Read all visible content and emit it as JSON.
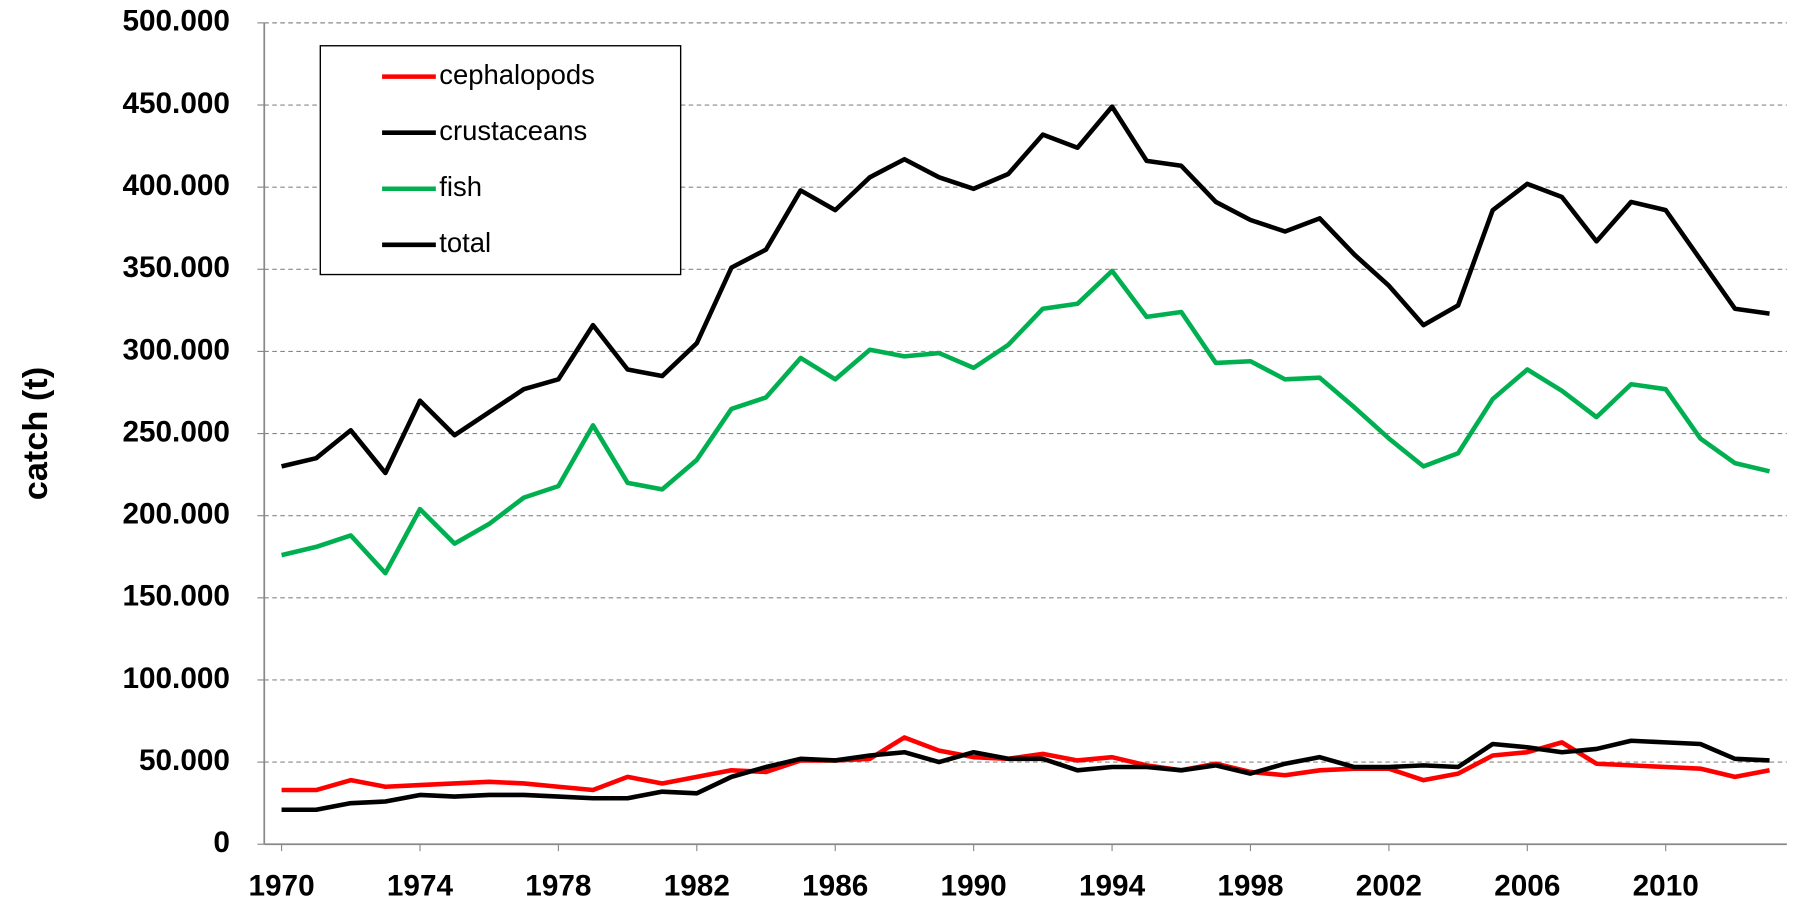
{
  "chart_data": {
    "type": "line",
    "y_label": "catch (t)",
    "x": [
      1970,
      1971,
      1972,
      1973,
      1974,
      1975,
      1976,
      1977,
      1978,
      1979,
      1980,
      1981,
      1982,
      1983,
      1984,
      1985,
      1986,
      1987,
      1988,
      1989,
      1990,
      1991,
      1992,
      1993,
      1994,
      1995,
      1996,
      1997,
      1998,
      1999,
      2000,
      2001,
      2002,
      2003,
      2004,
      2005,
      2006,
      2007,
      2008,
      2009,
      2010,
      2011,
      2012,
      2013
    ],
    "xlim": [
      1969.5,
      2013.5
    ],
    "xticks": [
      1970,
      1974,
      1978,
      1982,
      1986,
      1990,
      1994,
      1998,
      2002,
      2006,
      2010
    ],
    "ylim": [
      0,
      500000
    ],
    "yticks": [
      0,
      {
        "value": 50000,
        "label": "50.000"
      },
      {
        "value": 100000,
        "label": "100.000"
      },
      {
        "value": 150000,
        "label": "150.000"
      },
      {
        "value": 200000,
        "label": "200.000"
      },
      {
        "value": 250000,
        "label": "250.000"
      },
      {
        "value": 300000,
        "label": "300.000"
      },
      {
        "value": 350000,
        "label": "350.000"
      },
      {
        "value": 400000,
        "label": "400.000"
      },
      {
        "value": 450000,
        "label": "450.000"
      },
      {
        "value": 500000,
        "label": "500.000"
      }
    ],
    "grid": true,
    "legend": "upper-left",
    "series": [
      {
        "name": "cephalopods",
        "color": "#ff0000",
        "values": [
          33000,
          33000,
          39000,
          35000,
          36000,
          37000,
          38000,
          37000,
          35000,
          33000,
          41000,
          37000,
          41000,
          45000,
          44000,
          51000,
          51000,
          52000,
          65000,
          57000,
          53000,
          52000,
          55000,
          51000,
          53000,
          48000,
          45000,
          49000,
          44000,
          42000,
          45000,
          46000,
          46000,
          39000,
          43000,
          54000,
          56000,
          62000,
          49000,
          48000,
          47000,
          46000,
          41000,
          45000
        ]
      },
      {
        "name": "crustaceans",
        "color": "#000000",
        "values": [
          21000,
          21000,
          25000,
          26000,
          30000,
          29000,
          30000,
          30000,
          29000,
          28000,
          28000,
          32000,
          31000,
          41000,
          47000,
          52000,
          51000,
          54000,
          56000,
          50000,
          56000,
          52000,
          52000,
          45000,
          47000,
          47000,
          45000,
          48000,
          43000,
          49000,
          53000,
          47000,
          47000,
          48000,
          47000,
          61000,
          59000,
          56000,
          58000,
          63000,
          62000,
          61000,
          52000,
          51000
        ]
      },
      {
        "name": "fish",
        "color": "#00b050",
        "values": [
          176000,
          181000,
          188000,
          165000,
          204000,
          183000,
          195000,
          211000,
          218000,
          255000,
          220000,
          216000,
          234000,
          265000,
          272000,
          296000,
          283000,
          301000,
          297000,
          299000,
          290000,
          304000,
          326000,
          329000,
          349000,
          321000,
          324000,
          293000,
          294000,
          283000,
          284000,
          266000,
          247000,
          230000,
          238000,
          271000,
          289000,
          276000,
          260000,
          280000,
          277000,
          247000,
          232000,
          227000
        ]
      },
      {
        "name": "total",
        "color": "#000000",
        "values": [
          230000,
          235000,
          252000,
          226000,
          270000,
          249000,
          263000,
          277000,
          283000,
          316000,
          289000,
          285000,
          305000,
          351000,
          362000,
          398000,
          386000,
          406000,
          417000,
          406000,
          399000,
          408000,
          432000,
          424000,
          449000,
          416000,
          413000,
          391000,
          380000,
          373000,
          381000,
          359000,
          340000,
          316000,
          328000,
          386000,
          402000,
          394000,
          367000,
          391000,
          386000,
          356000,
          326000,
          323000
        ]
      }
    ]
  }
}
